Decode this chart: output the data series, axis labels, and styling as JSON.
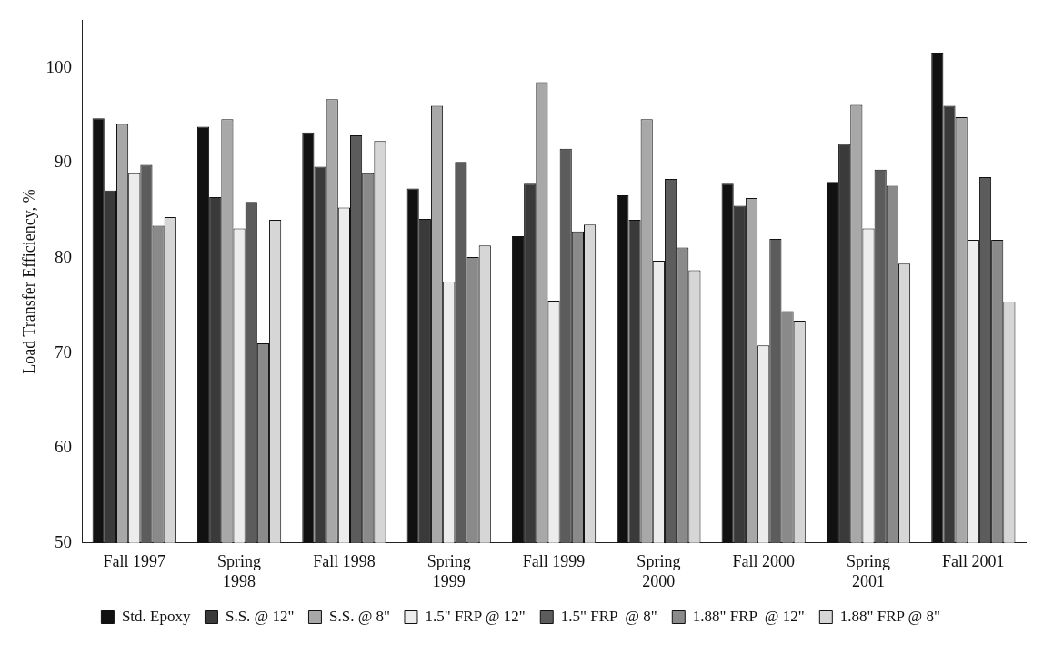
{
  "chart_data": {
    "type": "bar",
    "ylabel": "Load Transfer Efficiency, %",
    "categories": [
      "Fall 1997",
      "Spring 1998",
      "Fall 1998",
      "Spring 1999",
      "Fall 1999",
      "Spring 2000",
      "Fall 2000",
      "Spring 2001",
      "Fall 2001"
    ],
    "series": [
      {
        "name": "Std. Epoxy",
        "color": "#111111",
        "values": [
          94.7,
          93.8,
          93.2,
          87.3,
          82.3,
          86.6,
          87.8,
          88.0,
          101.6
        ]
      },
      {
        "name": "S.S. @ 12\"",
        "color": "#3a3a3a",
        "values": [
          87.1,
          86.4,
          89.6,
          84.1,
          87.8,
          84.0,
          85.5,
          92.0,
          96.0
        ]
      },
      {
        "name": "S.S. @ 8\"",
        "color": "#a8a8a8",
        "values": [
          94.1,
          94.6,
          96.7,
          96.0,
          98.5,
          94.6,
          86.3,
          96.1,
          94.8
        ]
      },
      {
        "name": "1.5\" FRP @ 12\"",
        "color": "#ececec",
        "values": [
          88.9,
          83.1,
          85.3,
          77.5,
          75.5,
          79.7,
          70.8,
          83.1,
          81.9
        ]
      },
      {
        "name": "1.5\" FRP  @ 8\"",
        "color": "#5c5c5c",
        "values": [
          89.8,
          85.9,
          92.9,
          90.1,
          91.5,
          88.3,
          82.0,
          89.3,
          88.5
        ]
      },
      {
        "name": "1.88\" FRP  @ 12\"",
        "color": "#8a8a8a",
        "values": [
          83.4,
          71.0,
          88.9,
          80.1,
          82.8,
          81.1,
          74.4,
          87.6,
          81.9
        ]
      },
      {
        "name": "1.88\" FRP @ 8\"",
        "color": "#d6d6d6",
        "values": [
          84.3,
          84.0,
          92.3,
          81.3,
          83.5,
          78.7,
          73.4,
          79.4,
          75.4
        ]
      }
    ],
    "ylim": [
      50,
      105
    ],
    "yticks": [
      50,
      60,
      70,
      80,
      90,
      100
    ],
    "grid": false,
    "legend": "bottom"
  }
}
